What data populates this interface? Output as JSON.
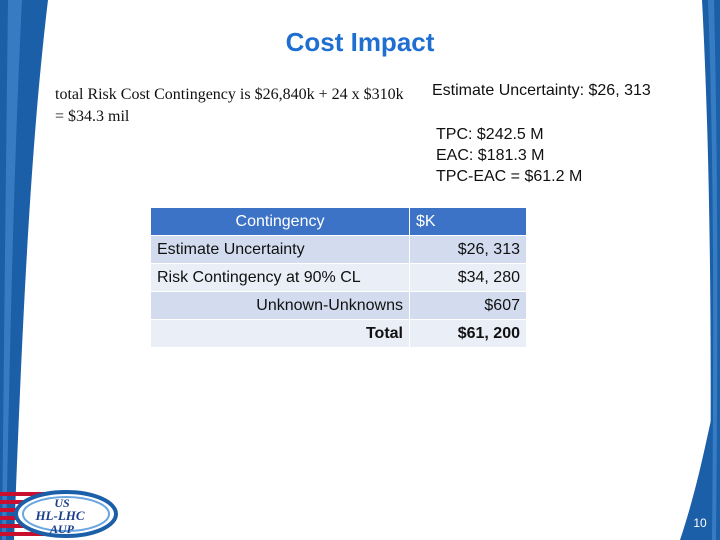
{
  "slide": {
    "title": "Cost Impact",
    "left_text": "total Risk Cost Contingency is $26,840k + 24 x $310k = $34.3 mil",
    "estimate_uncertainty": "Estimate Uncertainty: $26, 313",
    "tpc_lines": [
      "TPC: $242.5 M",
      "EAC: $181.3 M",
      "TPC-EAC = $61.2 M"
    ],
    "page_number": "10"
  },
  "table": {
    "headers": [
      "Contingency",
      "$K"
    ],
    "rows": [
      {
        "label": "Estimate Uncertainty",
        "value": "$26, 313"
      },
      {
        "label": "Risk Contingency at 90% CL",
        "value": "$34, 280"
      },
      {
        "label": "Unknown-Unknowns",
        "value": "$607"
      },
      {
        "label": "Total",
        "value": "$61, 200"
      }
    ]
  },
  "logo": {
    "line1": "US",
    "line2": "HL-LHC",
    "line3": "AUP"
  },
  "colors": {
    "title": "#1f6fd1",
    "header_bg": "#3c73c6",
    "row_a": "#d3dcef",
    "row_b": "#eaeef7",
    "sidebar": "#1a5fa8"
  }
}
